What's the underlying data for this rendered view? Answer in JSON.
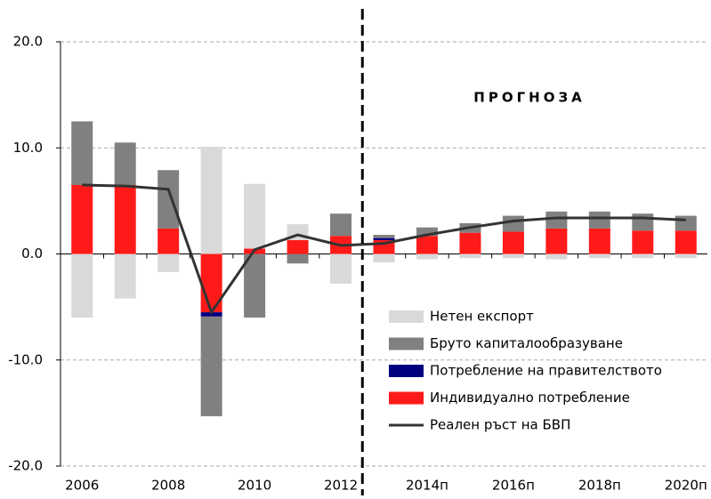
{
  "chart_data": {
    "type": "bar",
    "annotation": "ПРОГНОЗА",
    "categories": [
      "2006",
      null,
      "2008",
      null,
      "2010",
      null,
      "2012",
      null,
      "2014п",
      null,
      "2016п",
      null,
      "2018п",
      null,
      "2020п"
    ],
    "series": [
      {
        "name": "Индивидуално потребление",
        "color": "#ff1a1a",
        "values": [
          6.5,
          6.5,
          2.4,
          -5.5,
          0.5,
          1.3,
          1.7,
          1.3,
          1.7,
          2.0,
          2.1,
          2.4,
          2.4,
          2.2,
          2.2
        ]
      },
      {
        "name": "Потребление  на правителството",
        "color": "#00007f",
        "values": [
          0,
          0,
          0,
          -0.4,
          0,
          0,
          0,
          0.2,
          0,
          0,
          0,
          0,
          0,
          0,
          0
        ]
      },
      {
        "name": "Бруто капиталообразуване",
        "color": "#808080",
        "values": [
          6.0,
          4.0,
          5.5,
          -9.4,
          -6.0,
          -0.9,
          2.1,
          0.3,
          0.8,
          0.9,
          1.5,
          1.6,
          1.6,
          1.6,
          1.4
        ]
      },
      {
        "name": "Нетен  експорт",
        "color": "#d9d9d9",
        "values": [
          -6.0,
          -4.2,
          -1.7,
          10.1,
          6.1,
          1.5,
          -2.8,
          -0.8,
          -0.5,
          -0.4,
          -0.4,
          -0.5,
          -0.4,
          -0.4,
          -0.4
        ]
      },
      {
        "name": "Реален ръст на БВП",
        "color": "#333333",
        "type": "line",
        "values": [
          6.5,
          6.4,
          6.1,
          -5.5,
          0.4,
          1.8,
          0.8,
          1.0,
          1.8,
          2.5,
          3.1,
          3.4,
          3.4,
          3.4,
          3.2
        ]
      }
    ],
    "ylim": [
      -20,
      20
    ],
    "yticks": [
      {
        "value": -20,
        "label": "-20.0"
      },
      {
        "value": -10,
        "label": "-10.0"
      },
      {
        "value": 0,
        "label": "0.0"
      },
      {
        "value": 10,
        "label": "10.0"
      },
      {
        "value": 20,
        "label": "20.0"
      }
    ],
    "grid": true
  }
}
